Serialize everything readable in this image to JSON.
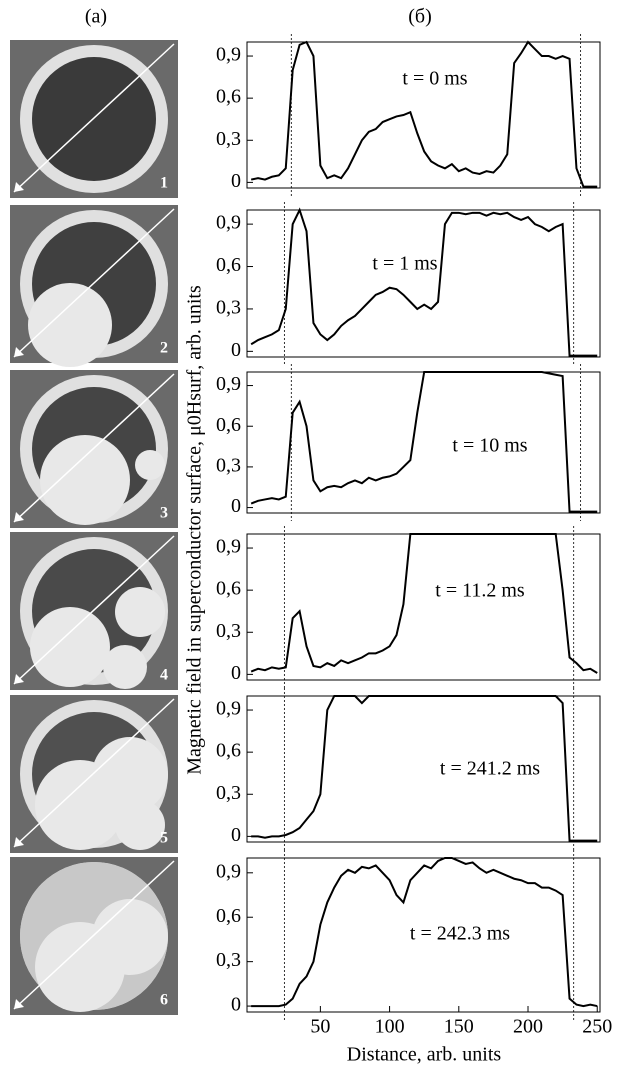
{
  "panel_labels": [
    "(a)",
    "(б)"
  ],
  "images": [
    {
      "label": "1"
    },
    {
      "label": "2"
    },
    {
      "label": "3"
    },
    {
      "label": "4"
    },
    {
      "label": "5"
    },
    {
      "label": "6"
    }
  ],
  "ylabel": "Magnetic field in superconductor surface, μ0Hsurf, arb. units",
  "xlabel": "Distance, arb. units",
  "chart_data": [
    {
      "type": "line",
      "annotation": "t = 0 ms",
      "color": "#000000",
      "xlim": [
        -3,
        252
      ],
      "ylim": [
        -0.04,
        1.0
      ],
      "yticks": [
        0,
        {
          "value": 0.3,
          "label": "0,3"
        },
        {
          "value": 0.6,
          "label": "0,6"
        },
        {
          "value": 0.9,
          "label": "0,9"
        }
      ],
      "vlines": [
        29,
        238
      ],
      "x": [
        0,
        5,
        10,
        15,
        20,
        25,
        30,
        35,
        40,
        45,
        50,
        55,
        60,
        65,
        70,
        75,
        80,
        85,
        90,
        95,
        100,
        105,
        110,
        115,
        120,
        125,
        130,
        135,
        140,
        145,
        150,
        155,
        160,
        165,
        170,
        175,
        180,
        185,
        190,
        195,
        200,
        205,
        210,
        215,
        220,
        225,
        230,
        235,
        240,
        245,
        250
      ],
      "values": [
        0.02,
        0.03,
        0.02,
        0.04,
        0.05,
        0.1,
        0.8,
        0.98,
        1.0,
        0.9,
        0.12,
        0.03,
        0.05,
        0.03,
        0.1,
        0.2,
        0.3,
        0.36,
        0.38,
        0.43,
        0.45,
        0.47,
        0.48,
        0.5,
        0.35,
        0.22,
        0.15,
        0.12,
        0.1,
        0.13,
        0.08,
        0.1,
        0.07,
        0.06,
        0.08,
        0.07,
        0.12,
        0.2,
        0.85,
        0.92,
        1.0,
        0.95,
        0.9,
        0.9,
        0.88,
        0.9,
        0.88,
        0.1,
        -0.03,
        -0.03,
        -0.03
      ]
    },
    {
      "type": "line",
      "annotation": "t = 1 ms",
      "color": "#000000",
      "xlim": [
        -3,
        252
      ],
      "ylim": [
        -0.04,
        1.0
      ],
      "yticks": [
        0,
        {
          "value": 0.3,
          "label": "0,3"
        },
        {
          "value": 0.6,
          "label": "0,6"
        },
        {
          "value": 0.9,
          "label": "0,9"
        }
      ],
      "vlines": [
        24,
        233
      ],
      "x": [
        0,
        5,
        10,
        15,
        20,
        25,
        30,
        35,
        40,
        45,
        50,
        55,
        60,
        65,
        70,
        75,
        80,
        85,
        90,
        95,
        100,
        105,
        110,
        115,
        120,
        125,
        130,
        135,
        140,
        145,
        150,
        155,
        160,
        165,
        170,
        175,
        180,
        185,
        190,
        195,
        200,
        205,
        210,
        215,
        220,
        225,
        230,
        235,
        240,
        245,
        250
      ],
      "values": [
        0.05,
        0.08,
        0.1,
        0.12,
        0.15,
        0.3,
        0.9,
        1.0,
        0.85,
        0.2,
        0.12,
        0.08,
        0.12,
        0.18,
        0.22,
        0.25,
        0.3,
        0.35,
        0.4,
        0.42,
        0.45,
        0.44,
        0.4,
        0.35,
        0.3,
        0.33,
        0.3,
        0.35,
        0.9,
        0.98,
        0.98,
        0.97,
        0.98,
        0.98,
        0.96,
        0.98,
        0.97,
        0.98,
        0.95,
        0.93,
        0.95,
        0.9,
        0.88,
        0.85,
        0.88,
        0.9,
        -0.03,
        -0.03,
        -0.03,
        -0.03,
        -0.03
      ]
    },
    {
      "type": "line",
      "annotation": "t = 10 ms",
      "color": "#000000",
      "xlim": [
        -3,
        252
      ],
      "ylim": [
        -0.04,
        1.0
      ],
      "yticks": [
        0,
        {
          "value": 0.3,
          "label": "0,3"
        },
        {
          "value": 0.6,
          "label": "0,6"
        },
        {
          "value": 0.9,
          "label": "0,9"
        }
      ],
      "vlines": [
        29,
        238
      ],
      "x": [
        0,
        5,
        10,
        15,
        20,
        25,
        30,
        35,
        40,
        45,
        50,
        55,
        60,
        65,
        70,
        75,
        80,
        85,
        90,
        95,
        100,
        105,
        110,
        115,
        120,
        125,
        130,
        135,
        140,
        145,
        150,
        155,
        160,
        165,
        170,
        175,
        180,
        185,
        190,
        195,
        200,
        205,
        210,
        215,
        220,
        225,
        230,
        235,
        240,
        245,
        250
      ],
      "values": [
        0.03,
        0.05,
        0.06,
        0.07,
        0.06,
        0.08,
        0.7,
        0.78,
        0.6,
        0.2,
        0.12,
        0.15,
        0.16,
        0.15,
        0.18,
        0.2,
        0.18,
        0.22,
        0.2,
        0.22,
        0.23,
        0.25,
        0.3,
        0.35,
        0.7,
        1.0,
        1.0,
        1.0,
        1.0,
        1.0,
        1.0,
        1.0,
        1.0,
        1.0,
        1.0,
        1.0,
        1.0,
        1.0,
        1.0,
        1.0,
        1.0,
        1.0,
        1.0,
        0.99,
        0.98,
        0.97,
        -0.03,
        -0.03,
        -0.03,
        -0.03,
        -0.03
      ]
    },
    {
      "type": "line",
      "annotation": "t = 11.2 ms",
      "color": "#000000",
      "xlim": [
        -3,
        252
      ],
      "ylim": [
        -0.04,
        1.0
      ],
      "yticks": [
        0,
        {
          "value": 0.3,
          "label": "0,3"
        },
        {
          "value": 0.6,
          "label": "0,6"
        },
        {
          "value": 0.9,
          "label": "0,9"
        }
      ],
      "vlines": [
        24,
        233
      ],
      "x": [
        0,
        5,
        10,
        15,
        20,
        25,
        30,
        35,
        40,
        45,
        50,
        55,
        60,
        65,
        70,
        75,
        80,
        85,
        90,
        95,
        100,
        105,
        110,
        115,
        120,
        125,
        130,
        135,
        140,
        145,
        150,
        155,
        160,
        165,
        170,
        175,
        180,
        185,
        190,
        195,
        200,
        205,
        210,
        215,
        220,
        225,
        230,
        235,
        240,
        245,
        250
      ],
      "values": [
        0.02,
        0.04,
        0.03,
        0.05,
        0.04,
        0.05,
        0.4,
        0.45,
        0.2,
        0.06,
        0.05,
        0.08,
        0.06,
        0.1,
        0.08,
        0.1,
        0.12,
        0.15,
        0.15,
        0.17,
        0.2,
        0.28,
        0.5,
        1.0,
        1.0,
        1.0,
        1.0,
        1.0,
        1.0,
        1.0,
        1.0,
        1.0,
        1.0,
        1.0,
        1.0,
        1.0,
        1.0,
        1.0,
        1.0,
        1.0,
        1.0,
        1.0,
        1.0,
        1.0,
        1.0,
        0.6,
        0.12,
        0.08,
        0.03,
        0.04,
        0.01
      ]
    },
    {
      "type": "line",
      "annotation": "t = 241.2 ms",
      "color": "#000000",
      "xlim": [
        -3,
        252
      ],
      "ylim": [
        -0.04,
        1.0
      ],
      "yticks": [
        0,
        {
          "value": 0.3,
          "label": "0,3"
        },
        {
          "value": 0.6,
          "label": "0,6"
        },
        {
          "value": 0.9,
          "label": "0,9"
        }
      ],
      "vlines": [
        24,
        233
      ],
      "x": [
        0,
        5,
        10,
        15,
        20,
        25,
        30,
        35,
        40,
        45,
        50,
        55,
        60,
        65,
        70,
        75,
        80,
        85,
        90,
        95,
        100,
        105,
        110,
        115,
        120,
        125,
        130,
        135,
        140,
        145,
        150,
        155,
        160,
        165,
        170,
        175,
        180,
        185,
        190,
        195,
        200,
        205,
        210,
        215,
        220,
        225,
        230,
        235,
        240,
        245,
        250
      ],
      "values": [
        0,
        0,
        -0.01,
        0,
        0,
        0.01,
        0.03,
        0.06,
        0.12,
        0.18,
        0.3,
        0.9,
        1.0,
        1.0,
        1.0,
        1.0,
        0.95,
        1.0,
        1.0,
        1.0,
        1.0,
        1.0,
        1.0,
        1.0,
        1.0,
        1.0,
        1.0,
        1.0,
        1.0,
        1.0,
        1.0,
        1.0,
        1.0,
        1.0,
        1.0,
        1.0,
        1.0,
        1.0,
        1.0,
        1.0,
        1.0,
        1.0,
        1.0,
        1.0,
        1.0,
        0.95,
        -0.03,
        -0.03,
        -0.03,
        -0.03,
        -0.03
      ]
    },
    {
      "type": "line",
      "annotation": "t = 242.3 ms",
      "color": "#000000",
      "xlim": [
        -3,
        252
      ],
      "ylim": [
        -0.04,
        1.0
      ],
      "yticks": [
        0,
        {
          "value": 0.3,
          "label": "0,3"
        },
        {
          "value": 0.6,
          "label": "0,6"
        },
        {
          "value": 0.9,
          "label": "0,9"
        }
      ],
      "xticks": [
        50,
        100,
        150,
        200,
        250
      ],
      "vlines": [
        24,
        233
      ],
      "x": [
        0,
        5,
        10,
        15,
        20,
        25,
        30,
        35,
        40,
        45,
        50,
        55,
        60,
        65,
        70,
        75,
        80,
        85,
        90,
        95,
        100,
        105,
        110,
        115,
        120,
        125,
        130,
        135,
        140,
        145,
        150,
        155,
        160,
        165,
        170,
        175,
        180,
        185,
        190,
        195,
        200,
        205,
        210,
        215,
        220,
        225,
        230,
        235,
        240,
        245,
        250
      ],
      "values": [
        0,
        0,
        0,
        0,
        0,
        0.01,
        0.05,
        0.15,
        0.2,
        0.3,
        0.55,
        0.7,
        0.8,
        0.88,
        0.92,
        0.9,
        0.94,
        0.93,
        0.95,
        0.9,
        0.85,
        0.75,
        0.7,
        0.85,
        0.9,
        0.95,
        0.93,
        0.98,
        1.0,
        1.0,
        0.98,
        0.96,
        0.97,
        0.93,
        0.9,
        0.92,
        0.9,
        0.88,
        0.86,
        0.85,
        0.83,
        0.83,
        0.8,
        0.8,
        0.78,
        0.75,
        0.05,
        0.01,
        0,
        0.01,
        0
      ]
    }
  ]
}
